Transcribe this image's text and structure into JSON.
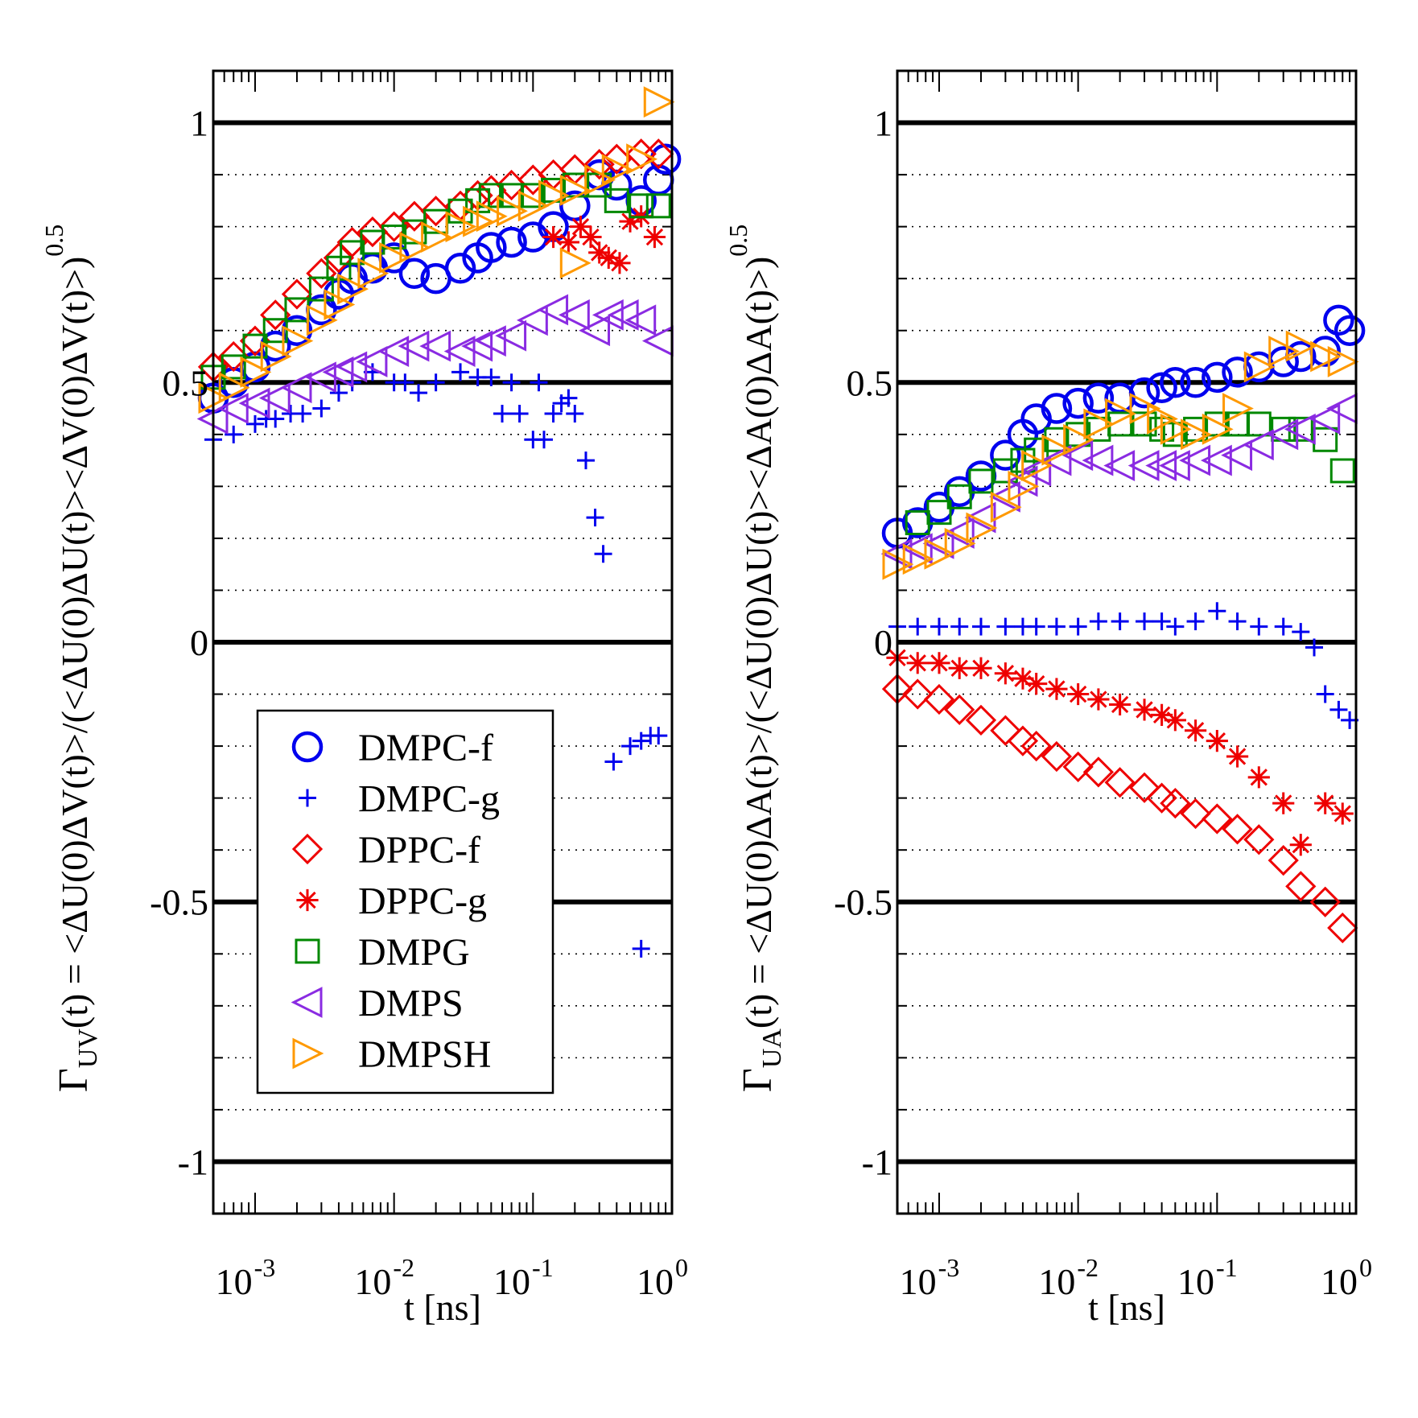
{
  "chart_data": [
    {
      "type": "scatter",
      "panel": "left",
      "xscale": "log",
      "xlim": [
        0.0005,
        1.0
      ],
      "ylim": [
        -1.1,
        1.1
      ],
      "xlabel": "t [ns]",
      "ylabel": {
        "prefix": "Γ",
        "sub": "UV",
        "body": "(t) = <ΔU(0)ΔV(t)>/(<ΔU(0)ΔU(t)><ΔV(0)ΔV(t)>)",
        "sup": "0.5"
      },
      "x_ticks": [
        {
          "value": 0.001,
          "base": "10",
          "exp": "-3"
        },
        {
          "value": 0.01,
          "base": "10",
          "exp": "-2"
        },
        {
          "value": 0.1,
          "base": "10",
          "exp": "-1"
        },
        {
          "value": 1,
          "base": "10",
          "exp": "0"
        }
      ],
      "y_ticks": [
        {
          "value": 1,
          "label": "1"
        },
        {
          "value": 0.5,
          "label": "0.5"
        },
        {
          "value": 0,
          "label": "0"
        },
        {
          "value": -0.5,
          "label": "-0.5"
        },
        {
          "value": -1,
          "label": "-1"
        }
      ],
      "major_grid": [
        1,
        0.5,
        0,
        -0.5,
        -1
      ],
      "minor_grid": [
        0.9,
        0.8,
        0.7,
        0.6,
        0.4,
        0.3,
        0.2,
        0.1,
        -0.1,
        -0.2,
        -0.3,
        -0.4,
        -0.6,
        -0.7,
        -0.8,
        -0.9
      ],
      "legend": {
        "placement": "lower-left",
        "entries": [
          "DMPC-f",
          "DMPC-g",
          "DPPC-f",
          "DPPC-g",
          "DMPG",
          "DMPS",
          "DMPSH"
        ]
      },
      "series": [
        {
          "name": "DMPC-f",
          "marker": "circle",
          "color": "#0000ee",
          "x": [
            0.0005,
            0.0007,
            0.001,
            0.0014,
            0.002,
            0.003,
            0.004,
            0.005,
            0.007,
            0.01,
            0.014,
            0.02,
            0.03,
            0.04,
            0.05,
            0.07,
            0.1,
            0.14,
            0.2,
            0.3,
            0.4,
            0.6,
            0.8,
            0.9
          ],
          "y": [
            0.47,
            0.5,
            0.53,
            0.57,
            0.6,
            0.64,
            0.67,
            0.7,
            0.72,
            0.74,
            0.71,
            0.7,
            0.72,
            0.74,
            0.76,
            0.77,
            0.78,
            0.8,
            0.84,
            0.9,
            0.88,
            0.85,
            0.89,
            0.93
          ]
        },
        {
          "name": "DMPC-g",
          "marker": "plus",
          "color": "#0000ee",
          "x": [
            0.0005,
            0.0007,
            0.001,
            0.0012,
            0.0014,
            0.0018,
            0.0022,
            0.003,
            0.004,
            0.005,
            0.007,
            0.01,
            0.012,
            0.015,
            0.02,
            0.03,
            0.04,
            0.05,
            0.06,
            0.07,
            0.08,
            0.1,
            0.11,
            0.12,
            0.14,
            0.16,
            0.18,
            0.2,
            0.24,
            0.28,
            0.32,
            0.38,
            0.5,
            0.6,
            0.7,
            0.8,
            0.6
          ],
          "y": [
            0.39,
            0.4,
            0.42,
            0.43,
            0.43,
            0.44,
            0.44,
            0.45,
            0.48,
            0.5,
            0.52,
            0.5,
            0.5,
            0.48,
            0.5,
            0.52,
            0.51,
            0.51,
            0.44,
            0.5,
            0.44,
            0.39,
            0.5,
            0.39,
            0.44,
            0.46,
            0.47,
            0.44,
            0.35,
            0.24,
            0.17,
            -0.23,
            -0.2,
            -0.19,
            -0.18,
            -0.18,
            -0.59
          ]
        },
        {
          "name": "DPPC-f",
          "marker": "diamond",
          "color": "#ee0000",
          "x": [
            0.0005,
            0.0007,
            0.001,
            0.0014,
            0.002,
            0.003,
            0.004,
            0.005,
            0.007,
            0.01,
            0.014,
            0.02,
            0.03,
            0.04,
            0.05,
            0.07,
            0.1,
            0.14,
            0.2,
            0.3,
            0.4,
            0.6,
            0.8
          ],
          "y": [
            0.53,
            0.55,
            0.58,
            0.63,
            0.67,
            0.71,
            0.74,
            0.77,
            0.79,
            0.8,
            0.82,
            0.83,
            0.84,
            0.86,
            0.87,
            0.88,
            0.89,
            0.9,
            0.91,
            0.92,
            0.93,
            0.94,
            0.94
          ]
        },
        {
          "name": "DPPC-g",
          "marker": "asterisk",
          "color": "#ee0000",
          "x": [
            0.14,
            0.18,
            0.22,
            0.26,
            0.3,
            0.35,
            0.42,
            0.5,
            0.6,
            0.75
          ],
          "y": [
            0.78,
            0.77,
            0.8,
            0.78,
            0.75,
            0.74,
            0.73,
            0.81,
            0.82,
            0.78
          ]
        },
        {
          "name": "DMPG",
          "marker": "square",
          "color": "#008800",
          "x": [
            0.0005,
            0.0007,
            0.001,
            0.0014,
            0.002,
            0.003,
            0.004,
            0.005,
            0.007,
            0.01,
            0.014,
            0.02,
            0.03,
            0.04,
            0.05,
            0.07,
            0.1,
            0.14,
            0.2,
            0.3,
            0.4,
            0.6,
            0.8
          ],
          "y": [
            0.51,
            0.53,
            0.57,
            0.6,
            0.64,
            0.68,
            0.72,
            0.75,
            0.77,
            0.78,
            0.79,
            0.81,
            0.83,
            0.85,
            0.86,
            0.86,
            0.86,
            0.87,
            0.88,
            0.88,
            0.85,
            0.84,
            0.84
          ]
        },
        {
          "name": "DMPS",
          "marker": "triangle-left",
          "color": "#8a2be2",
          "x": [
            0.0005,
            0.0007,
            0.001,
            0.0014,
            0.002,
            0.003,
            0.004,
            0.005,
            0.007,
            0.01,
            0.014,
            0.02,
            0.03,
            0.04,
            0.05,
            0.07,
            0.1,
            0.14,
            0.2,
            0.28,
            0.35,
            0.45,
            0.6,
            0.8
          ],
          "y": [
            0.43,
            0.45,
            0.46,
            0.47,
            0.49,
            0.51,
            0.52,
            0.53,
            0.54,
            0.56,
            0.57,
            0.57,
            0.56,
            0.57,
            0.58,
            0.59,
            0.62,
            0.64,
            0.63,
            0.6,
            0.63,
            0.63,
            0.62,
            0.58
          ]
        },
        {
          "name": "DMPSH",
          "marker": "triangle-right",
          "color": "#ff9900",
          "x": [
            0.0005,
            0.0007,
            0.001,
            0.0014,
            0.002,
            0.003,
            0.004,
            0.005,
            0.007,
            0.01,
            0.014,
            0.02,
            0.03,
            0.04,
            0.05,
            0.07,
            0.1,
            0.14,
            0.2,
            0.3,
            0.4,
            0.6,
            0.2,
            0.8
          ],
          "y": [
            0.47,
            0.49,
            0.52,
            0.55,
            0.58,
            0.62,
            0.65,
            0.68,
            0.71,
            0.74,
            0.76,
            0.78,
            0.8,
            0.81,
            0.82,
            0.83,
            0.84,
            0.86,
            0.87,
            0.89,
            0.91,
            0.93,
            0.73,
            1.04
          ]
        }
      ]
    },
    {
      "type": "scatter",
      "panel": "right",
      "xscale": "log",
      "xlim": [
        0.0005,
        1.0
      ],
      "ylim": [
        -1.1,
        1.1
      ],
      "xlabel": "t [ns]",
      "ylabel": {
        "prefix": "Γ",
        "sub": "UA",
        "body": "(t) = <ΔU(0)ΔA(t)>/(<ΔU(0)ΔU(t)><ΔA(0)ΔA(t)>)",
        "sup": "0.5"
      },
      "x_ticks": [
        {
          "value": 0.001,
          "base": "10",
          "exp": "-3"
        },
        {
          "value": 0.01,
          "base": "10",
          "exp": "-2"
        },
        {
          "value": 0.1,
          "base": "10",
          "exp": "-1"
        },
        {
          "value": 1,
          "base": "10",
          "exp": "0"
        }
      ],
      "y_ticks": [
        {
          "value": 1,
          "label": "1"
        },
        {
          "value": 0.5,
          "label": "0.5"
        },
        {
          "value": 0,
          "label": "0"
        },
        {
          "value": -0.5,
          "label": "-0.5"
        },
        {
          "value": -1,
          "label": "-1"
        }
      ],
      "major_grid": [
        1,
        0.5,
        0,
        -0.5,
        -1
      ],
      "minor_grid": [
        0.9,
        0.8,
        0.7,
        0.6,
        0.4,
        0.3,
        0.2,
        0.1,
        -0.1,
        -0.2,
        -0.3,
        -0.4,
        -0.6,
        -0.7,
        -0.8,
        -0.9
      ],
      "series": [
        {
          "name": "DMPC-f",
          "marker": "circle",
          "color": "#0000ee",
          "x": [
            0.0005,
            0.0007,
            0.001,
            0.0014,
            0.002,
            0.003,
            0.004,
            0.005,
            0.007,
            0.01,
            0.014,
            0.02,
            0.03,
            0.04,
            0.05,
            0.07,
            0.1,
            0.14,
            0.2,
            0.3,
            0.4,
            0.6,
            0.75,
            0.9
          ],
          "y": [
            0.21,
            0.23,
            0.26,
            0.29,
            0.32,
            0.36,
            0.4,
            0.43,
            0.45,
            0.46,
            0.47,
            0.47,
            0.48,
            0.49,
            0.5,
            0.5,
            0.51,
            0.52,
            0.53,
            0.54,
            0.55,
            0.56,
            0.62,
            0.6
          ]
        },
        {
          "name": "DMPC-g",
          "marker": "plus",
          "color": "#0000ee",
          "x": [
            0.0005,
            0.0007,
            0.001,
            0.0014,
            0.002,
            0.003,
            0.004,
            0.005,
            0.007,
            0.01,
            0.014,
            0.02,
            0.03,
            0.04,
            0.05,
            0.07,
            0.1,
            0.14,
            0.2,
            0.3,
            0.4,
            0.5,
            0.6,
            0.75,
            0.9
          ],
          "y": [
            0.03,
            0.03,
            0.03,
            0.03,
            0.03,
            0.03,
            0.03,
            0.03,
            0.03,
            0.03,
            0.04,
            0.04,
            0.04,
            0.04,
            0.03,
            0.04,
            0.06,
            0.04,
            0.03,
            0.03,
            0.02,
            -0.01,
            -0.1,
            -0.13,
            -0.15
          ]
        },
        {
          "name": "DPPC-f",
          "marker": "diamond",
          "color": "#ee0000",
          "x": [
            0.0005,
            0.0007,
            0.001,
            0.0014,
            0.002,
            0.003,
            0.004,
            0.005,
            0.007,
            0.01,
            0.014,
            0.02,
            0.03,
            0.04,
            0.05,
            0.07,
            0.1,
            0.14,
            0.2,
            0.3,
            0.4,
            0.6,
            0.8
          ],
          "y": [
            -0.09,
            -0.1,
            -0.11,
            -0.13,
            -0.15,
            -0.17,
            -0.19,
            -0.2,
            -0.22,
            -0.24,
            -0.25,
            -0.27,
            -0.28,
            -0.3,
            -0.31,
            -0.33,
            -0.34,
            -0.36,
            -0.38,
            -0.42,
            -0.47,
            -0.5,
            -0.55
          ]
        },
        {
          "name": "DPPC-g",
          "marker": "asterisk",
          "color": "#ee0000",
          "x": [
            0.0005,
            0.0007,
            0.001,
            0.0014,
            0.002,
            0.003,
            0.004,
            0.005,
            0.007,
            0.01,
            0.014,
            0.02,
            0.03,
            0.04,
            0.05,
            0.07,
            0.1,
            0.14,
            0.2,
            0.3,
            0.4,
            0.6,
            0.8
          ],
          "y": [
            -0.03,
            -0.04,
            -0.04,
            -0.05,
            -0.05,
            -0.06,
            -0.07,
            -0.08,
            -0.09,
            -0.1,
            -0.11,
            -0.12,
            -0.13,
            -0.14,
            -0.15,
            -0.17,
            -0.19,
            -0.22,
            -0.26,
            -0.31,
            -0.39,
            -0.31,
            -0.33
          ]
        },
        {
          "name": "DMPG",
          "marker": "square",
          "color": "#008800",
          "x": [
            0.0007,
            0.001,
            0.0014,
            0.002,
            0.003,
            0.004,
            0.005,
            0.007,
            0.01,
            0.014,
            0.02,
            0.03,
            0.04,
            0.05,
            0.07,
            0.1,
            0.14,
            0.2,
            0.3,
            0.4,
            0.6,
            0.8
          ],
          "y": [
            0.23,
            0.25,
            0.28,
            0.31,
            0.33,
            0.35,
            0.37,
            0.39,
            0.4,
            0.41,
            0.42,
            0.42,
            0.41,
            0.4,
            0.41,
            0.42,
            0.42,
            0.42,
            0.41,
            0.41,
            0.39,
            0.33
          ]
        },
        {
          "name": "DMPS",
          "marker": "triangle-left",
          "color": "#8a2be2",
          "x": [
            0.0005,
            0.0007,
            0.001,
            0.0014,
            0.002,
            0.003,
            0.004,
            0.005,
            0.007,
            0.01,
            0.014,
            0.02,
            0.03,
            0.04,
            0.05,
            0.07,
            0.1,
            0.14,
            0.2,
            0.3,
            0.4,
            0.6,
            0.8
          ],
          "y": [
            0.17,
            0.18,
            0.19,
            0.21,
            0.24,
            0.28,
            0.31,
            0.33,
            0.35,
            0.36,
            0.35,
            0.34,
            0.34,
            0.34,
            0.34,
            0.35,
            0.35,
            0.36,
            0.38,
            0.4,
            0.41,
            0.43,
            0.45
          ]
        },
        {
          "name": "DMPSH",
          "marker": "triangle-right",
          "color": "#ff9900",
          "x": [
            0.0005,
            0.0007,
            0.001,
            0.0014,
            0.002,
            0.003,
            0.004,
            0.005,
            0.007,
            0.01,
            0.014,
            0.02,
            0.03,
            0.04,
            0.05,
            0.07,
            0.1,
            0.14,
            0.2,
            0.3,
            0.4,
            0.6,
            0.8
          ],
          "y": [
            0.15,
            0.16,
            0.17,
            0.19,
            0.22,
            0.26,
            0.3,
            0.34,
            0.37,
            0.39,
            0.42,
            0.44,
            0.45,
            0.43,
            0.41,
            0.4,
            0.41,
            0.45,
            0.53,
            0.56,
            0.57,
            0.55,
            0.54
          ]
        }
      ]
    }
  ]
}
